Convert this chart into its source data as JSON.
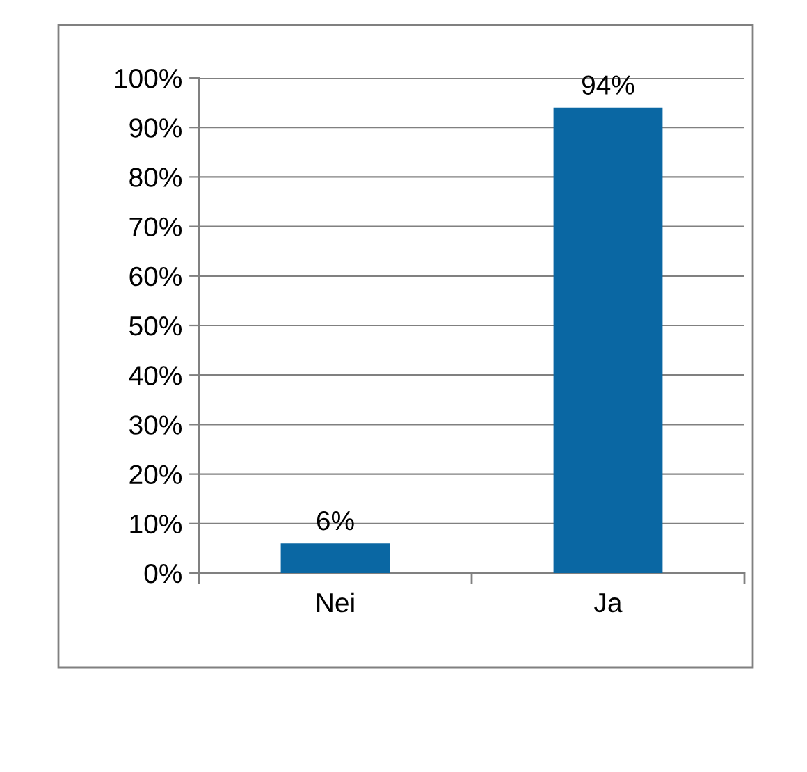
{
  "chart_data": {
    "type": "bar",
    "categories": [
      "Nei",
      "Ja"
    ],
    "values": [
      6,
      94
    ],
    "value_labels": [
      "6%",
      "94%"
    ],
    "color": "#0a67a3",
    "ylim": [
      0,
      100
    ],
    "yticks": [
      {
        "value": 0,
        "label": "0%"
      },
      {
        "value": 10,
        "label": "10%"
      },
      {
        "value": 20,
        "label": "20%"
      },
      {
        "value": 30,
        "label": "30%"
      },
      {
        "value": 40,
        "label": "40%"
      },
      {
        "value": 50,
        "label": "50%"
      },
      {
        "value": 60,
        "label": "60%"
      },
      {
        "value": 70,
        "label": "70%"
      },
      {
        "value": 80,
        "label": "80%"
      },
      {
        "value": 90,
        "label": "90%"
      },
      {
        "value": 100,
        "label": "100%"
      }
    ],
    "grid": "y"
  }
}
